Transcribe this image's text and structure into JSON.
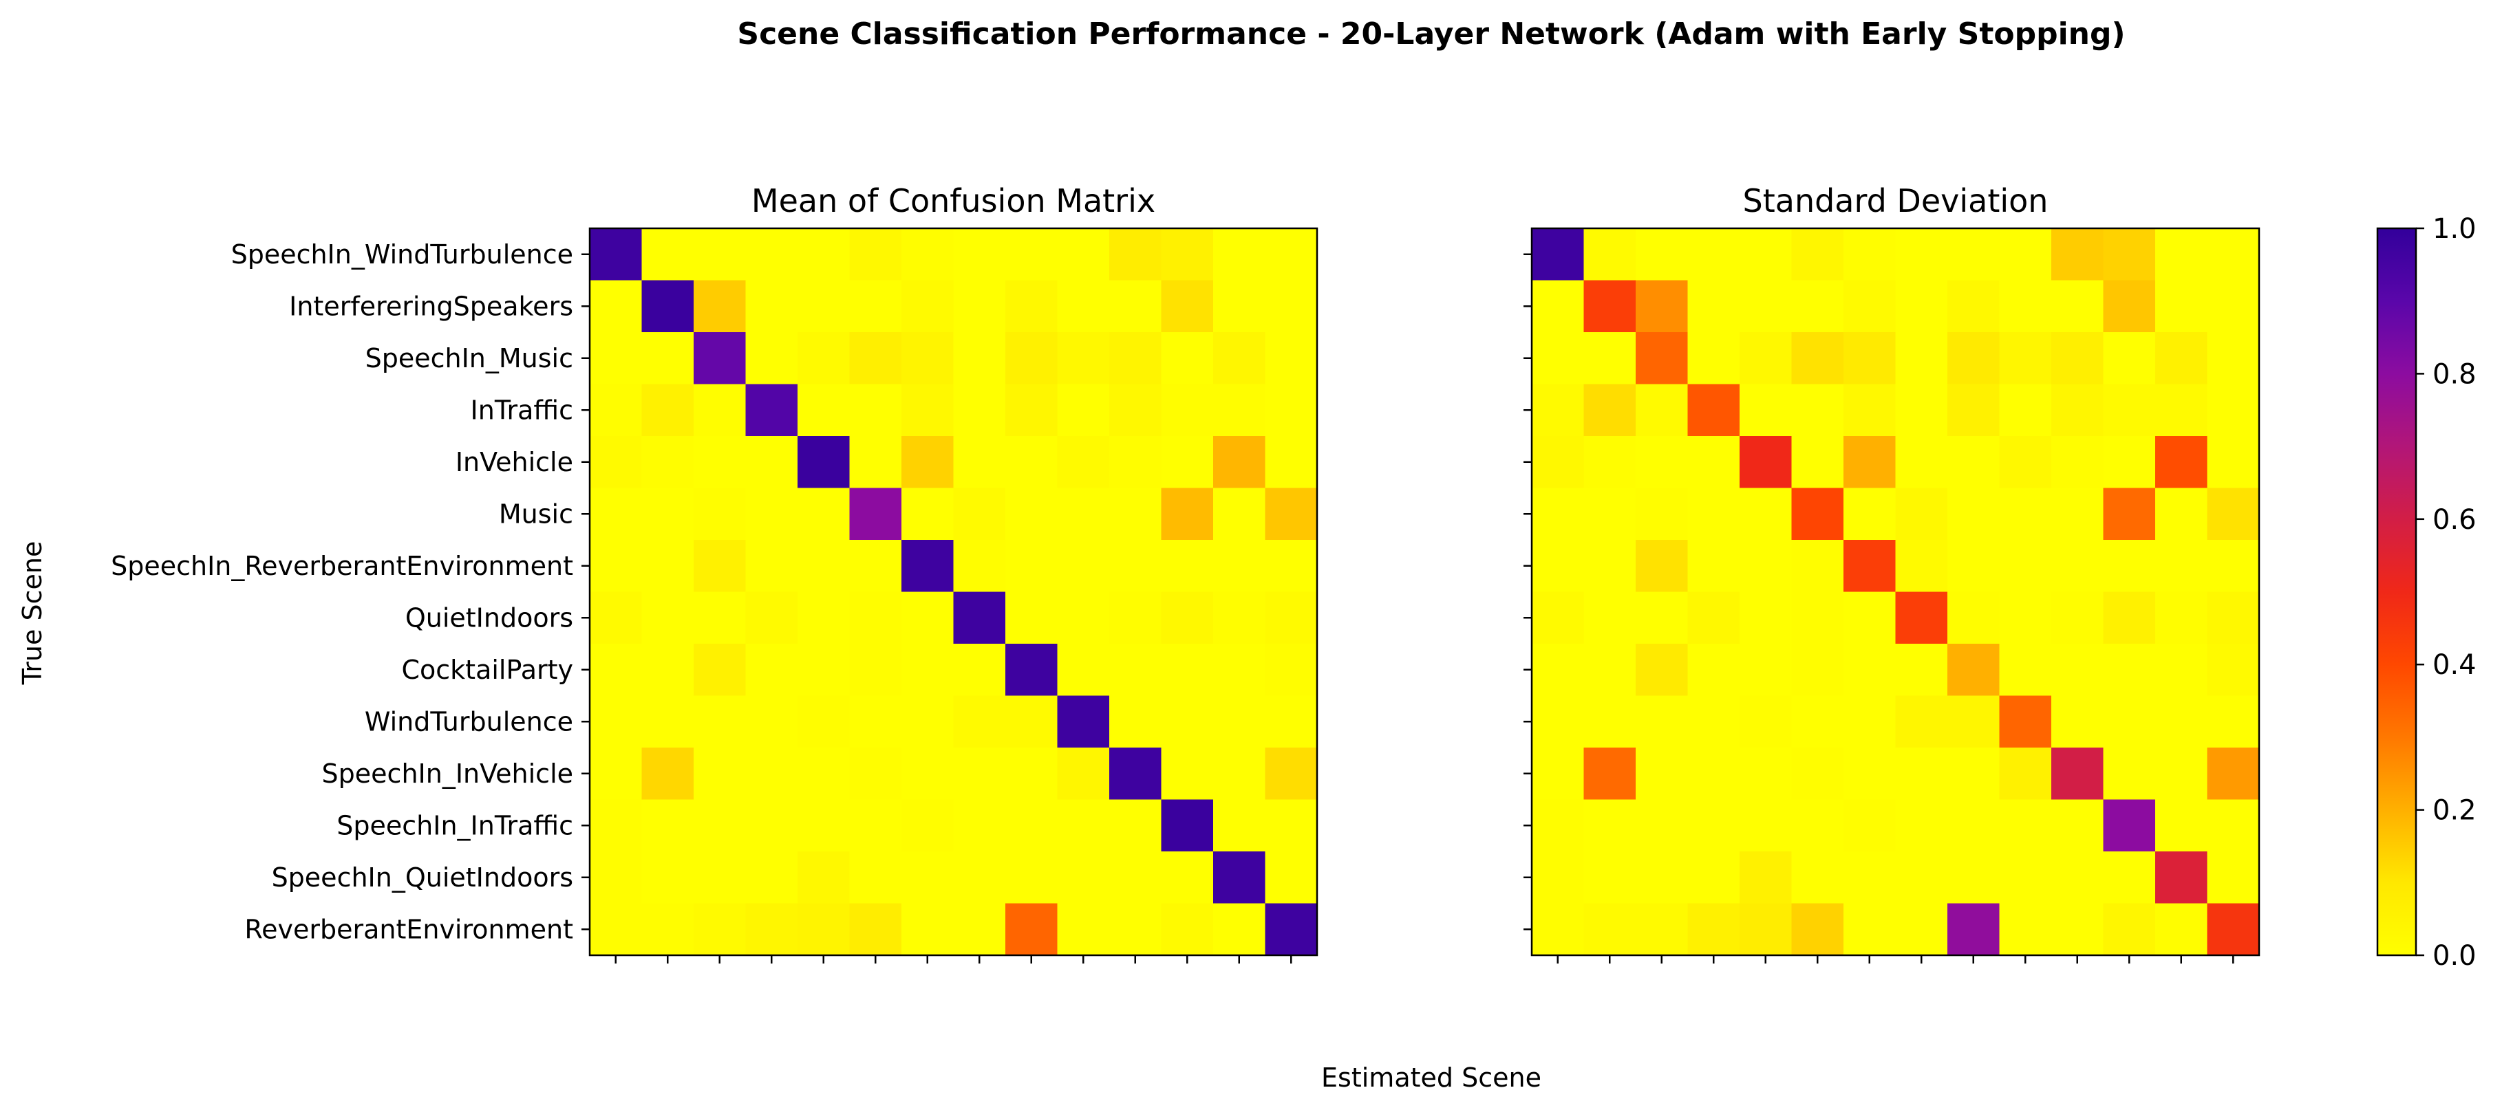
{
  "suptitle": "Scene Classification Performance - 20-Layer Network (Adam with Early Stopping)",
  "xlabel": "Estimated Scene",
  "ylabel": "True Scene",
  "colorbar": {
    "colormap": "plasma_r",
    "min": 0.0,
    "max": 1.0,
    "ticks": [
      "0.0",
      "0.2",
      "0.4",
      "0.6",
      "0.8",
      "1.0"
    ]
  },
  "chart_data": [
    {
      "type": "heatmap",
      "title": "Mean of Confusion Matrix",
      "categories": [
        "SpeechIn_WindTurbulence",
        "InterfereringSpeakers",
        "SpeechIn_Music",
        "InTraffic",
        "InVehicle",
        "Music",
        "SpeechIn_ReverberantEnvironment",
        "QuietIndoors",
        "CocktailParty",
        "WindTurbulence",
        "SpeechIn_InVehicle",
        "SpeechIn_InTraffic",
        "SpeechIn_QuietIndoors",
        "ReverberantEnvironment"
      ],
      "values": [
        [
          0.97,
          0.0,
          0.0,
          0.0,
          0.0,
          0.03,
          0.01,
          0.0,
          0.0,
          0.0,
          0.08,
          0.06,
          0.0,
          0.0
        ],
        [
          0.0,
          0.98,
          0.15,
          0.0,
          0.0,
          0.0,
          0.02,
          0.0,
          0.03,
          0.0,
          0.0,
          0.11,
          0.0,
          0.0
        ],
        [
          0.0,
          0.0,
          0.88,
          0.0,
          0.02,
          0.07,
          0.05,
          0.0,
          0.06,
          0.03,
          0.05,
          0.0,
          0.04,
          0.0
        ],
        [
          0.01,
          0.06,
          0.01,
          0.92,
          0.0,
          0.0,
          0.03,
          0.0,
          0.04,
          0.0,
          0.03,
          0.01,
          0.01,
          0.0
        ],
        [
          0.02,
          0.01,
          0.0,
          0.0,
          0.98,
          0.0,
          0.14,
          0.0,
          0.0,
          0.02,
          0.01,
          0.0,
          0.19,
          0.0
        ],
        [
          0.0,
          0.0,
          0.01,
          0.0,
          0.0,
          0.8,
          0.0,
          0.02,
          0.0,
          0.0,
          0.0,
          0.18,
          0.0,
          0.16
        ],
        [
          0.0,
          0.0,
          0.06,
          0.0,
          0.0,
          0.0,
          0.97,
          0.01,
          0.0,
          0.0,
          0.0,
          0.0,
          0.0,
          0.0
        ],
        [
          0.02,
          0.0,
          0.0,
          0.02,
          0.0,
          0.01,
          0.0,
          0.97,
          0.0,
          0.0,
          0.01,
          0.03,
          0.01,
          0.02
        ],
        [
          0.0,
          0.0,
          0.06,
          0.0,
          0.0,
          0.01,
          0.0,
          0.0,
          0.97,
          0.0,
          0.0,
          0.0,
          0.0,
          0.01
        ],
        [
          0.0,
          0.0,
          0.0,
          0.0,
          0.01,
          0.0,
          0.0,
          0.02,
          0.02,
          0.97,
          0.0,
          0.0,
          0.0,
          0.0
        ],
        [
          0.0,
          0.13,
          0.0,
          0.0,
          0.0,
          0.01,
          0.0,
          0.0,
          0.0,
          0.04,
          0.97,
          0.0,
          0.0,
          0.12
        ],
        [
          0.01,
          0.0,
          0.0,
          0.0,
          0.0,
          0.0,
          0.01,
          0.0,
          0.0,
          0.0,
          0.0,
          0.98,
          0.0,
          0.0
        ],
        [
          0.01,
          0.0,
          0.0,
          0.0,
          0.03,
          0.0,
          0.0,
          0.0,
          0.0,
          0.0,
          0.0,
          0.0,
          0.97,
          0.0
        ],
        [
          0.01,
          0.01,
          0.02,
          0.04,
          0.05,
          0.08,
          0.0,
          0.0,
          0.34,
          0.0,
          0.0,
          0.02,
          0.0,
          0.97
        ]
      ]
    },
    {
      "type": "heatmap",
      "title": "Standard Deviation",
      "categories": [
        "SpeechIn_WindTurbulence",
        "InterfereringSpeakers",
        "SpeechIn_Music",
        "InTraffic",
        "InVehicle",
        "Music",
        "SpeechIn_ReverberantEnvironment",
        "QuietIndoors",
        "CocktailParty",
        "WindTurbulence",
        "SpeechIn_InVehicle",
        "SpeechIn_InTraffic",
        "SpeechIn_QuietIndoors",
        "ReverberantEnvironment"
      ],
      "values": [
        [
          0.97,
          0.02,
          0.0,
          0.0,
          0.0,
          0.04,
          0.01,
          0.0,
          0.0,
          0.0,
          0.15,
          0.14,
          0.0,
          0.0
        ],
        [
          0.0,
          0.43,
          0.26,
          0.0,
          0.0,
          0.0,
          0.02,
          0.0,
          0.03,
          0.0,
          0.0,
          0.16,
          0.0,
          0.0
        ],
        [
          0.0,
          0.0,
          0.34,
          0.0,
          0.03,
          0.11,
          0.09,
          0.0,
          0.09,
          0.04,
          0.07,
          0.0,
          0.06,
          0.0
        ],
        [
          0.02,
          0.12,
          0.02,
          0.37,
          0.0,
          0.0,
          0.03,
          0.0,
          0.06,
          0.0,
          0.04,
          0.02,
          0.02,
          0.0
        ],
        [
          0.03,
          0.01,
          0.0,
          0.0,
          0.5,
          0.0,
          0.2,
          0.0,
          0.0,
          0.03,
          0.01,
          0.0,
          0.39,
          0.0
        ],
        [
          0.0,
          0.0,
          0.01,
          0.0,
          0.0,
          0.41,
          0.0,
          0.03,
          0.0,
          0.0,
          0.0,
          0.33,
          0.0,
          0.11
        ],
        [
          0.0,
          0.0,
          0.11,
          0.0,
          0.0,
          0.01,
          0.43,
          0.02,
          0.0,
          0.0,
          0.0,
          0.0,
          0.0,
          0.0
        ],
        [
          0.02,
          0.0,
          0.0,
          0.03,
          0.0,
          0.01,
          0.0,
          0.43,
          0.01,
          0.0,
          0.01,
          0.06,
          0.01,
          0.03
        ],
        [
          0.0,
          0.0,
          0.09,
          0.0,
          0.0,
          0.01,
          0.0,
          0.0,
          0.2,
          0.0,
          0.0,
          0.0,
          0.0,
          0.02
        ],
        [
          0.0,
          0.0,
          0.0,
          0.0,
          0.01,
          0.0,
          0.0,
          0.04,
          0.04,
          0.34,
          0.0,
          0.0,
          0.0,
          0.0
        ],
        [
          0.0,
          0.33,
          0.0,
          0.0,
          0.0,
          0.01,
          0.0,
          0.0,
          0.0,
          0.06,
          0.6,
          0.0,
          0.0,
          0.24
        ],
        [
          0.01,
          0.0,
          0.0,
          0.0,
          0.0,
          0.0,
          0.01,
          0.0,
          0.0,
          0.0,
          0.0,
          0.8,
          0.0,
          0.0
        ],
        [
          0.01,
          0.0,
          0.0,
          0.0,
          0.06,
          0.0,
          0.0,
          0.0,
          0.0,
          0.0,
          0.0,
          0.0,
          0.57,
          0.0
        ],
        [
          0.01,
          0.02,
          0.02,
          0.06,
          0.08,
          0.14,
          0.0,
          0.0,
          0.79,
          0.0,
          0.0,
          0.04,
          0.01,
          0.46
        ]
      ]
    }
  ]
}
